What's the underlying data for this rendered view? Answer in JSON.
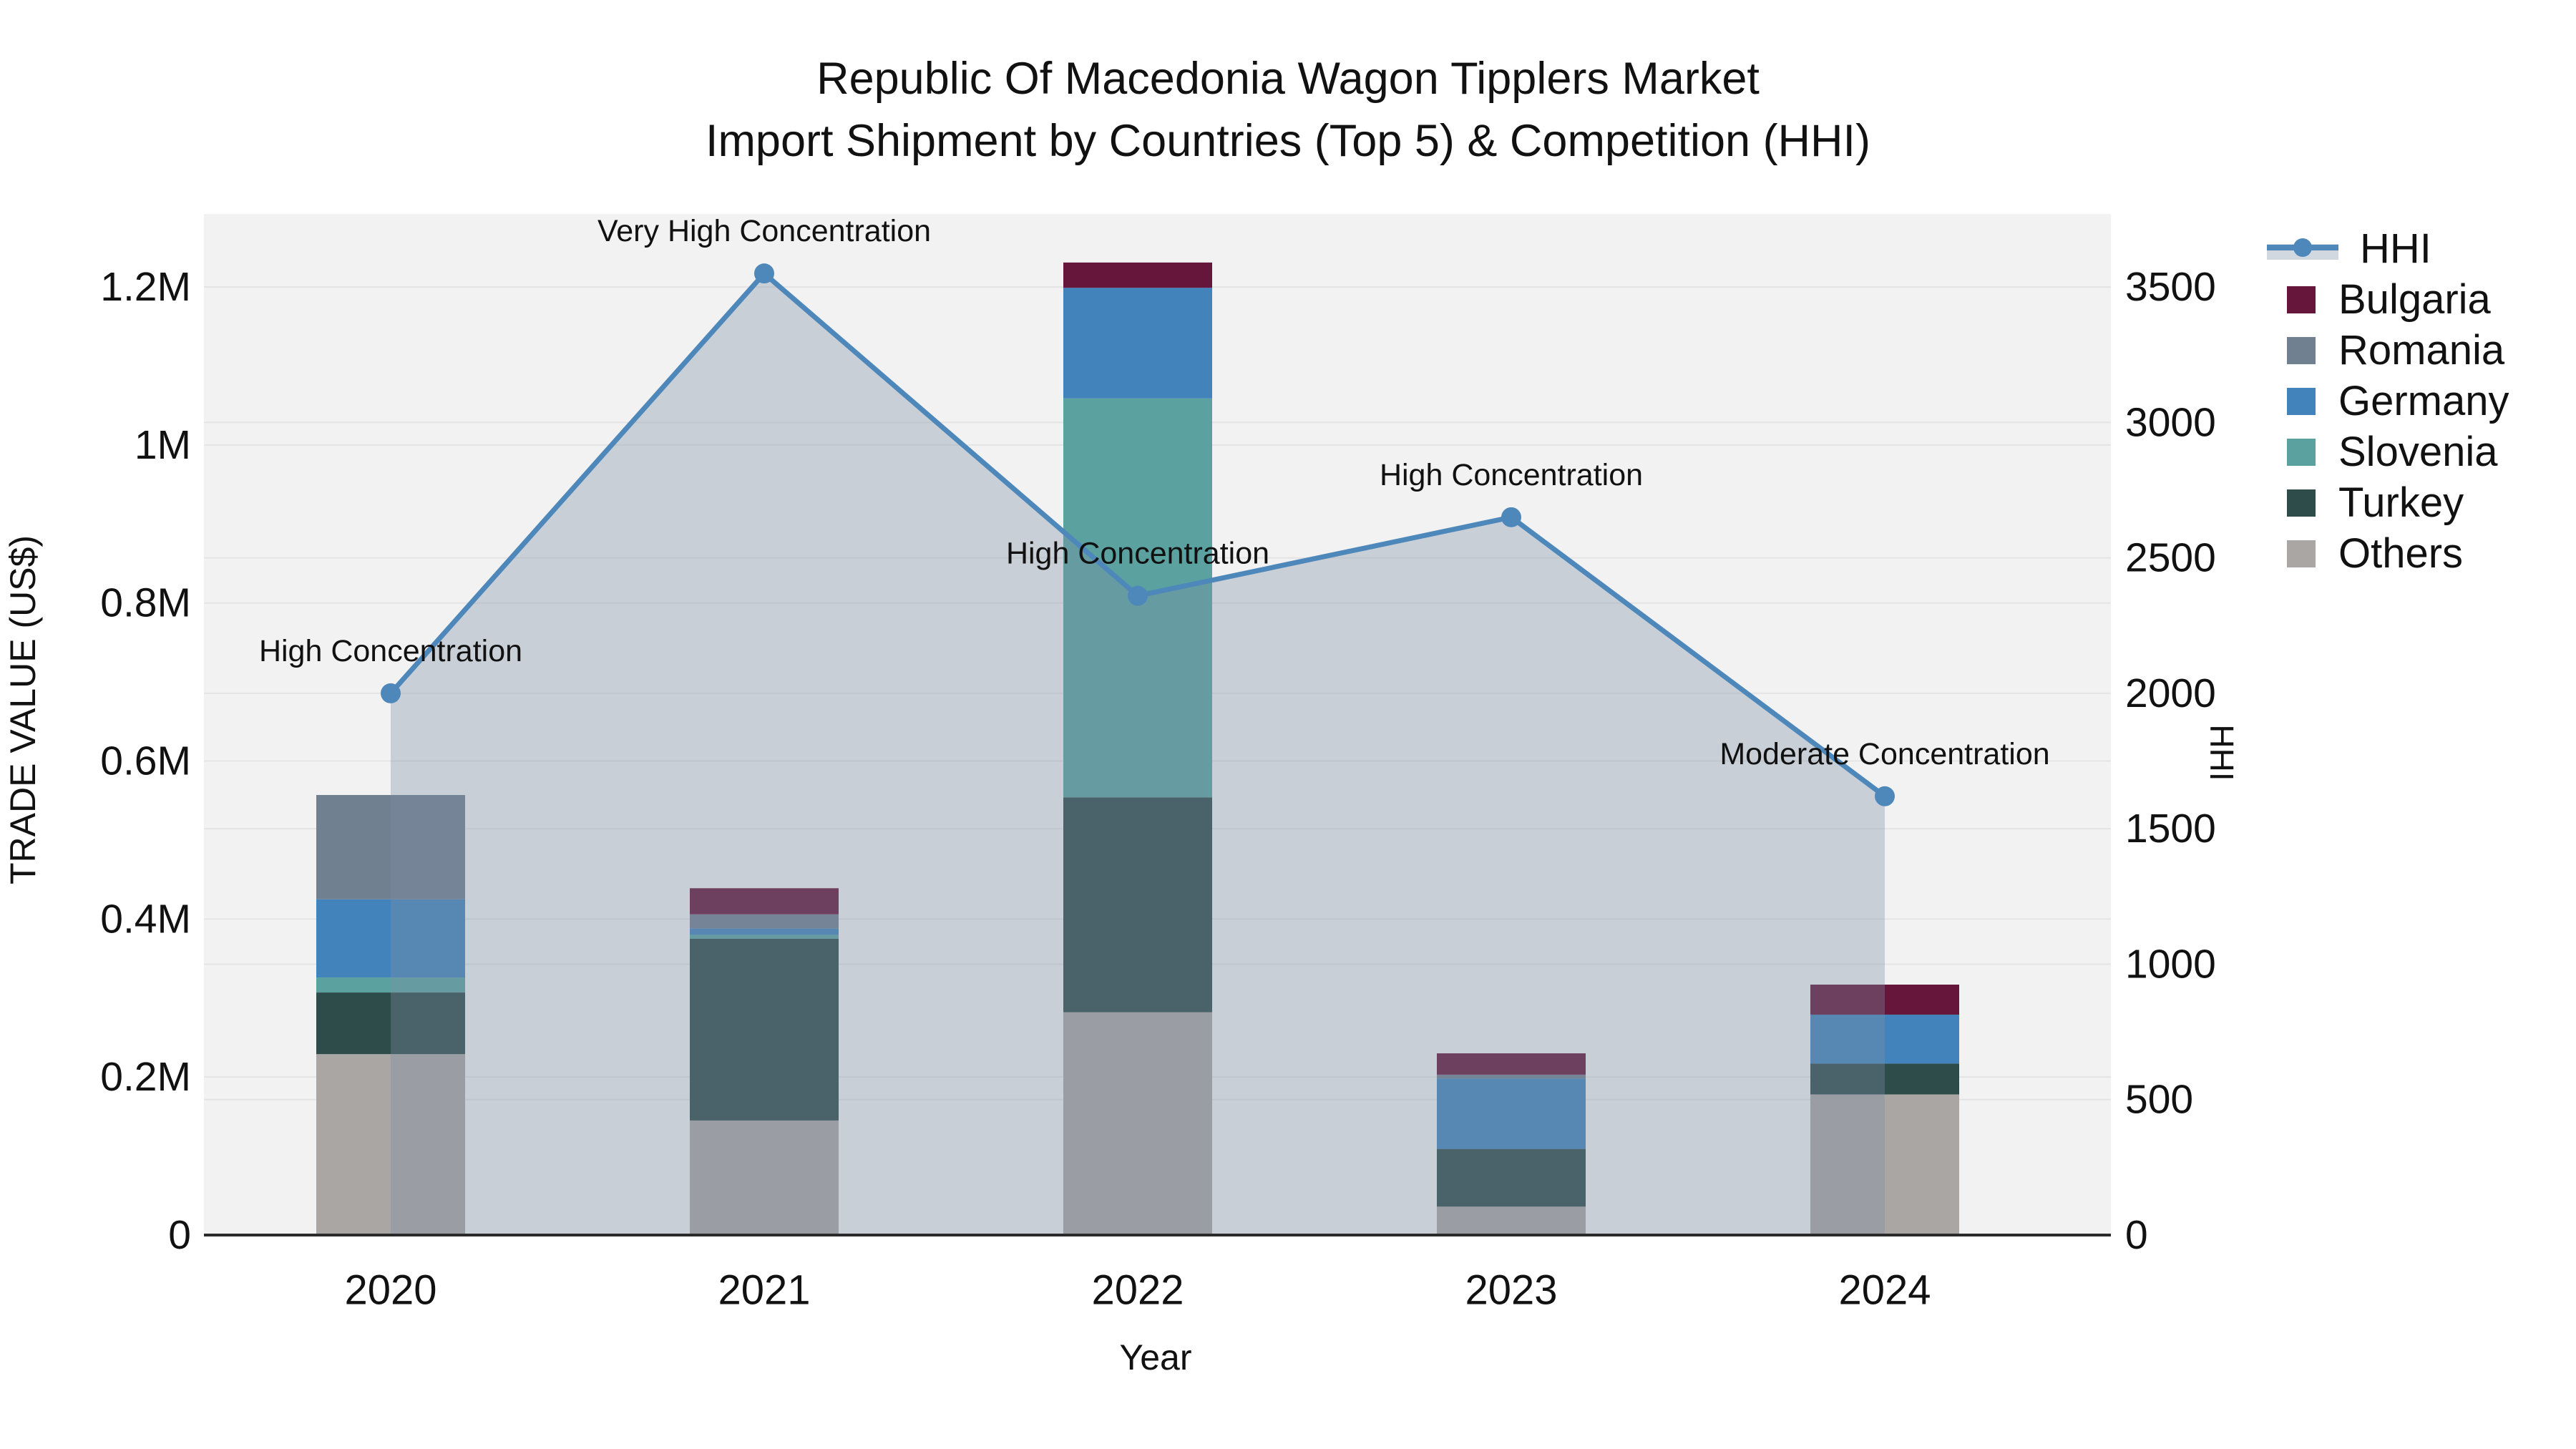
{
  "title": {
    "line1": "Republic Of Macedonia Wagon Tipplers Market",
    "line2": "Import Shipment by Countries (Top 5) & Competition (HHI)"
  },
  "axes": {
    "x": {
      "title": "Year"
    },
    "left": {
      "title": "TRADE VALUE (US$)",
      "ticks": [
        {
          "value": 0,
          "label": "0"
        },
        {
          "value": 200000,
          "label": "0.2M"
        },
        {
          "value": 400000,
          "label": "0.4M"
        },
        {
          "value": 600000,
          "label": "0.6M"
        },
        {
          "value": 800000,
          "label": "0.8M"
        },
        {
          "value": 1000000,
          "label": "1M"
        },
        {
          "value": 1200000,
          "label": "1.2M"
        }
      ]
    },
    "right": {
      "title": "HHI",
      "ticks": [
        {
          "value": 0,
          "label": "0"
        },
        {
          "value": 500,
          "label": "500"
        },
        {
          "value": 1000,
          "label": "1000"
        },
        {
          "value": 1500,
          "label": "1500"
        },
        {
          "value": 2000,
          "label": "2000"
        },
        {
          "value": 2500,
          "label": "2500"
        },
        {
          "value": 3000,
          "label": "3000"
        },
        {
          "value": 3500,
          "label": "3500"
        }
      ]
    }
  },
  "chart_data": {
    "type": "bar+line",
    "title": "Republic Of Macedonia Wagon Tipplers Market — Import Shipment by Countries (Top 5) & Competition (HHI)",
    "categories": [
      "2020",
      "2021",
      "2022",
      "2023",
      "2024"
    ],
    "stack_order_bottom_to_top": [
      "Others",
      "Turkey",
      "Slovenia",
      "Germany",
      "Romania",
      "Bulgaria"
    ],
    "series": [
      {
        "name": "Bulgaria",
        "color": "#65163a",
        "values": [
          0,
          33000,
          32000,
          27000,
          38000
        ]
      },
      {
        "name": "Romania",
        "color": "#708090",
        "values": [
          132000,
          18000,
          0,
          5000,
          0
        ]
      },
      {
        "name": "Germany",
        "color": "#4383bb",
        "values": [
          99000,
          8000,
          140000,
          89000,
          62000
        ]
      },
      {
        "name": "Slovenia",
        "color": "#5aa19f",
        "values": [
          19000,
          5000,
          505000,
          0,
          0
        ]
      },
      {
        "name": "Turkey",
        "color": "#2e4c4a",
        "values": [
          78000,
          230000,
          272000,
          73000,
          39000
        ]
      },
      {
        "name": "Others",
        "color": "#a9a6a3",
        "values": [
          229000,
          145000,
          282000,
          36000,
          178000
        ]
      }
    ],
    "bar_totals": [
      557000,
      439000,
      1231000,
      230000,
      317000
    ],
    "line_series": {
      "name": "HHI",
      "color": "#4e88ba",
      "area_fill_color": "#7d8ea6",
      "area_fill_opacity": 0.35,
      "values": [
        2000,
        3550,
        2360,
        2650,
        1620
      ],
      "annotations": [
        "High Concentration",
        "Very High Concentration",
        "High Concentration",
        "High Concentration",
        "Moderate Concentration"
      ]
    },
    "xlabel": "Year",
    "ylabel_left": "TRADE VALUE (US$)",
    "ylabel_right": "HHI",
    "ylim_left": [
      0,
      1310000
    ],
    "ylim_right": [
      0,
      3820
    ],
    "grid": true,
    "legend_position": "right",
    "plot_bg": "#f2f2f2",
    "grid_color": "#e4e4e4",
    "axis_line_color": "#2b2b2b"
  },
  "legend": {
    "entries": [
      "HHI",
      "Bulgaria",
      "Romania",
      "Germany",
      "Slovenia",
      "Turkey",
      "Others"
    ]
  }
}
